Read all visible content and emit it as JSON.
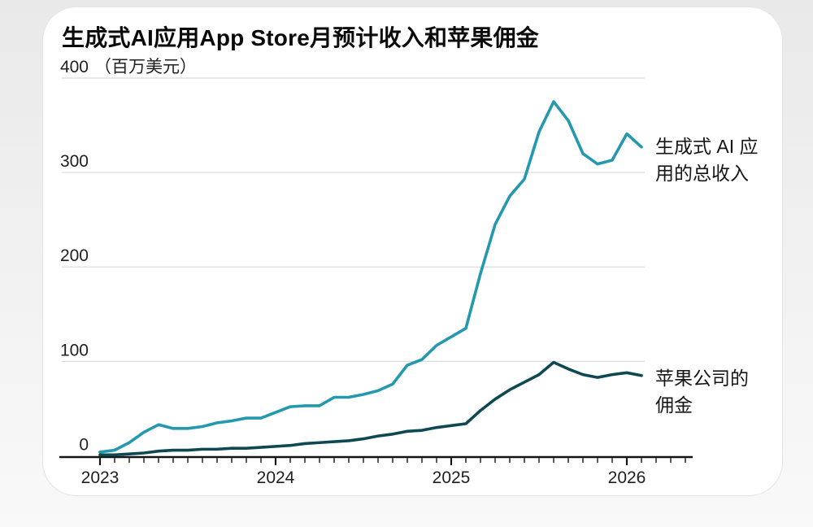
{
  "page": {
    "title": "生成式AI应用App Store月预计收入和苹果佣金",
    "unit_label": "（百万美元）"
  },
  "annotations": {
    "revenue_label": "生成式 AI 应\n用的总收入",
    "commission_label": "苹果公司的\n佣金"
  },
  "chart_data": {
    "type": "line",
    "title": "生成式AI应用App Store月预计收入和苹果佣金",
    "unit": "百万美元",
    "ylim": [
      0,
      400
    ],
    "y_ticks": [
      400,
      300,
      200,
      100,
      0
    ],
    "x_tick_years": [
      "2023",
      "2024",
      "2025",
      "2026"
    ],
    "grid": "horizontal",
    "legend_position": "right-annotations",
    "months": [
      "2023-01",
      "2023-02",
      "2023-03",
      "2023-04",
      "2023-05",
      "2023-06",
      "2023-07",
      "2023-08",
      "2023-09",
      "2023-10",
      "2023-11",
      "2023-12",
      "2024-01",
      "2024-02",
      "2024-03",
      "2024-04",
      "2024-05",
      "2024-06",
      "2024-07",
      "2024-08",
      "2024-09",
      "2024-10",
      "2024-11",
      "2024-12",
      "2025-01",
      "2025-02",
      "2025-03",
      "2025-04",
      "2025-05",
      "2025-06",
      "2025-07",
      "2025-08",
      "2025-09",
      "2025-10",
      "2025-11",
      "2025-12",
      "2026-01",
      "2026-02"
    ],
    "series": [
      {
        "name": "生成式 AI 应用的总收入",
        "color": "#2498ad",
        "values": [
          4,
          6,
          14,
          25,
          33,
          29,
          29,
          31,
          35,
          37,
          40,
          40,
          46,
          52,
          53,
          53,
          62,
          62,
          65,
          69,
          76,
          96,
          102,
          117,
          126,
          135,
          193,
          245,
          275,
          293,
          343,
          375,
          355,
          320,
          309,
          313,
          341,
          327
        ]
      },
      {
        "name": "苹果公司的佣金",
        "color": "#0e4953",
        "values": [
          1,
          1,
          2,
          3,
          5,
          6,
          6,
          7,
          7,
          8,
          8,
          9,
          10,
          11,
          13,
          14,
          15,
          16,
          18,
          21,
          23,
          26,
          27,
          30,
          32,
          34,
          48,
          60,
          70,
          78,
          86,
          99,
          92,
          86,
          83,
          86,
          88,
          85
        ]
      }
    ]
  }
}
